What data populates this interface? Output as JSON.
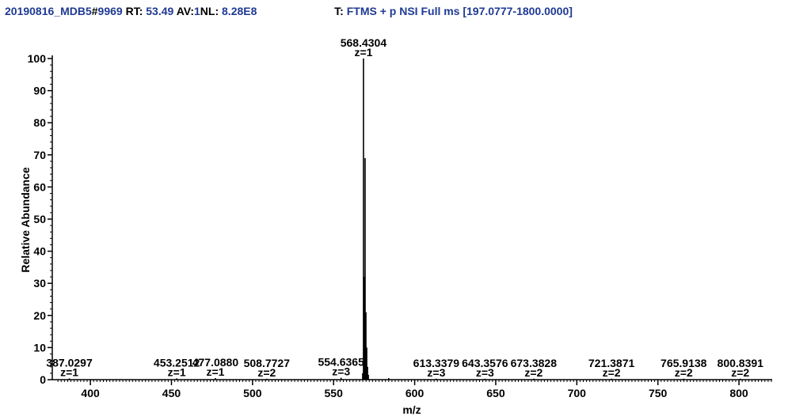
{
  "header": {
    "file_id": "20190816_MDB5",
    "scan_prefix": "#",
    "scan_number": "9969",
    "rt_label": "RT:",
    "rt_value": "53.49",
    "av_label": "AV:",
    "av_value": "1",
    "nl_label": "NL:",
    "nl_value": "8.28E8",
    "filter_prefix": "T:",
    "filter": "FTMS + p NSI Full ms [197.0777-1800.0000]"
  },
  "colors": {
    "header_blue": "#1f3a93",
    "axis": "#000000",
    "peaks": "#000000"
  },
  "chart_data": {
    "type": "bar",
    "subtype": "mass-spectrum-stick",
    "xlabel": "m/z",
    "ylabel": "Relative Abundance",
    "xlim": [
      376.5,
      820.5
    ],
    "ylim": [
      0,
      100
    ],
    "xticks": [
      400,
      450,
      500,
      550,
      600,
      650,
      700,
      750,
      800
    ],
    "yticks": [
      0,
      10,
      20,
      30,
      40,
      50,
      60,
      70,
      80,
      90,
      100
    ],
    "grid": false,
    "legend": "none",
    "peaks": [
      {
        "mz": 568.43,
        "y": 100
      },
      {
        "mz": 569.43,
        "y": 69
      },
      {
        "mz": 568.93,
        "y": 32
      },
      {
        "mz": 569.93,
        "y": 21
      },
      {
        "mz": 570.43,
        "y": 10
      },
      {
        "mz": 570.93,
        "y": 4
      },
      {
        "mz": 571.43,
        "y": 1.5
      },
      {
        "mz": 567.93,
        "y": 2
      },
      {
        "mz": 387.03,
        "y": 0.4
      },
      {
        "mz": 453.25,
        "y": 0.4
      },
      {
        "mz": 477.09,
        "y": 0.5
      },
      {
        "mz": 508.77,
        "y": 0.3
      },
      {
        "mz": 554.64,
        "y": 0.6
      },
      {
        "mz": 584.0,
        "y": 0.5
      },
      {
        "mz": 613.34,
        "y": 0.3
      },
      {
        "mz": 643.36,
        "y": 0.3
      },
      {
        "mz": 673.38,
        "y": 0.3
      },
      {
        "mz": 721.39,
        "y": 0.3
      },
      {
        "mz": 765.91,
        "y": 0.3
      },
      {
        "mz": 800.84,
        "y": 0.3
      }
    ],
    "annotations": [
      {
        "mz": 568.4304,
        "label": "568.4304",
        "charge": "z=1",
        "y": 100
      },
      {
        "mz": 387.0297,
        "label": "387.0297",
        "charge": "z=1",
        "y": 0.4
      },
      {
        "mz": 453.2512,
        "label": "453.2512",
        "charge": "z=1",
        "y": 0.4
      },
      {
        "mz": 477.088,
        "label": "477.0880",
        "charge": "z=1",
        "y": 0.5
      },
      {
        "mz": 508.7727,
        "label": "508.7727",
        "charge": "z=2",
        "y": 0.3
      },
      {
        "mz": 554.6365,
        "label": "554.6365",
        "charge": "z=3",
        "y": 0.6
      },
      {
        "mz": 613.3379,
        "label": "613.3379",
        "charge": "z=3",
        "y": 0.3
      },
      {
        "mz": 643.3576,
        "label": "643.3576",
        "charge": "z=3",
        "y": 0.3
      },
      {
        "mz": 673.3828,
        "label": "673.3828",
        "charge": "z=2",
        "y": 0.3
      },
      {
        "mz": 721.3871,
        "label": "721.3871",
        "charge": "z=2",
        "y": 0.3
      },
      {
        "mz": 765.9138,
        "label": "765.9138",
        "charge": "z=2",
        "y": 0.3
      },
      {
        "mz": 800.8391,
        "label": "800.8391",
        "charge": "z=2",
        "y": 0.3
      }
    ]
  }
}
